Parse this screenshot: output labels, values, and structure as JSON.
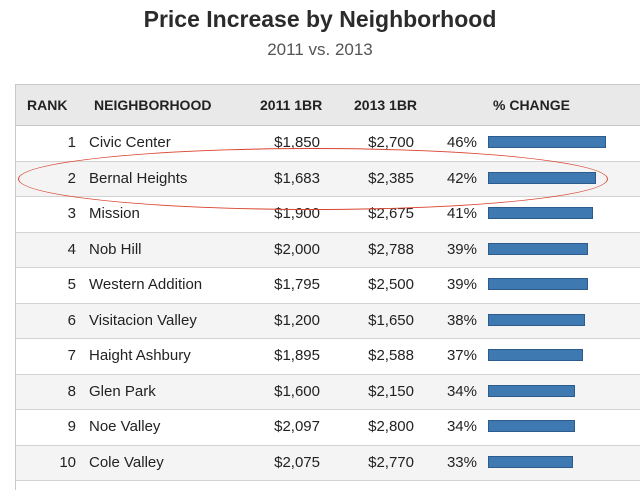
{
  "chart_data": {
    "type": "table",
    "title": "Price Increase by Neighborhood",
    "subtitle": "2011 vs. 2013",
    "columns": [
      "RANK",
      "NEIGHBORHOOD",
      "2011 1BR",
      "2013 1BR",
      "% CHANGE"
    ],
    "rows": [
      {
        "rank": "1",
        "name": "Civic Center",
        "p2011": "$1,850",
        "p2013": "$2,700",
        "pct": "46%",
        "value": 46
      },
      {
        "rank": "2",
        "name": "Bernal Heights",
        "p2011": "$1,683",
        "p2013": "$2,385",
        "pct": "42%",
        "value": 42
      },
      {
        "rank": "3",
        "name": "Mission",
        "p2011": "$1,900",
        "p2013": "$2,675",
        "pct": "41%",
        "value": 41
      },
      {
        "rank": "4",
        "name": "Nob Hill",
        "p2011": "$2,000",
        "p2013": "$2,788",
        "pct": "39%",
        "value": 39
      },
      {
        "rank": "5",
        "name": "Western Addition",
        "p2011": "$1,795",
        "p2013": "$2,500",
        "pct": "39%",
        "value": 39
      },
      {
        "rank": "6",
        "name": "Visitacion Valley",
        "p2011": "$1,200",
        "p2013": "$1,650",
        "pct": "38%",
        "value": 38
      },
      {
        "rank": "7",
        "name": "Haight Ashbury",
        "p2011": "$1,895",
        "p2013": "$2,588",
        "pct": "37%",
        "value": 37
      },
      {
        "rank": "8",
        "name": "Glen Park",
        "p2011": "$1,600",
        "p2013": "$2,150",
        "pct": "34%",
        "value": 34
      },
      {
        "rank": "9",
        "name": "Noe Valley",
        "p2011": "$2,097",
        "p2013": "$2,800",
        "pct": "34%",
        "value": 34
      },
      {
        "rank": "10",
        "name": "Cole Valley",
        "p2011": "$2,075",
        "p2013": "$2,770",
        "pct": "33%",
        "value": 33
      }
    ],
    "highlighted_rank": "2",
    "bar_max_value": 46
  },
  "colors": {
    "bar": "#3f79b2",
    "highlight": "#d9442f",
    "header_bg": "#e9e9e9"
  }
}
